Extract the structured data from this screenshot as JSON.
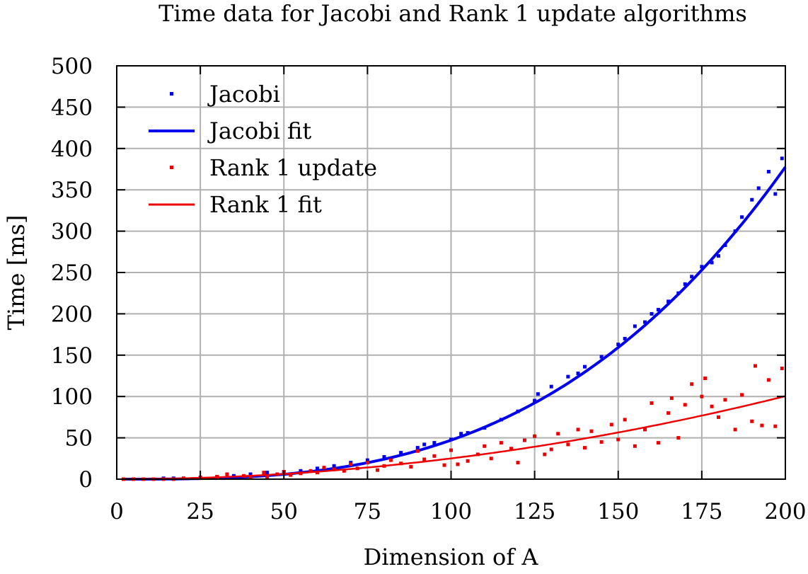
{
  "chart_data": {
    "type": "scatter",
    "title": "Time data for Jacobi and Rank 1 update algorithms",
    "xlabel": "Dimension of A",
    "ylabel": "Time [ms]",
    "xlim": [
      0,
      200
    ],
    "ylim": [
      0,
      500
    ],
    "xticks": [
      0,
      25,
      50,
      75,
      100,
      125,
      150,
      175,
      200
    ],
    "yticks": [
      0,
      50,
      100,
      150,
      200,
      250,
      300,
      350,
      400,
      450,
      500
    ],
    "grid": true,
    "legend_position": "top-left",
    "series": [
      {
        "name": "Jacobi",
        "kind": "points",
        "color": "#0000ee",
        "x": [
          2,
          5,
          8,
          11,
          14,
          17,
          20,
          25,
          30,
          35,
          40,
          45,
          50,
          55,
          60,
          65,
          70,
          75,
          80,
          85,
          90,
          92,
          95,
          100,
          103,
          105,
          110,
          115,
          120,
          125,
          126,
          130,
          135,
          138,
          140,
          145,
          150,
          152,
          155,
          158,
          160,
          162,
          165,
          168,
          170,
          172,
          175,
          178,
          180,
          182,
          185,
          187,
          190,
          192,
          195,
          197,
          199
        ],
        "y": [
          0,
          0,
          0,
          0,
          1,
          1,
          1,
          2,
          3,
          4,
          6,
          8,
          9,
          10,
          13,
          16,
          20,
          23,
          27,
          32,
          38,
          42,
          44,
          48,
          55,
          56,
          62,
          72,
          82,
          95,
          103,
          112,
          124,
          128,
          136,
          148,
          163,
          170,
          185,
          190,
          200,
          205,
          215,
          225,
          236,
          245,
          257,
          262,
          270,
          283,
          300,
          317,
          338,
          352,
          372,
          345,
          388
        ]
      },
      {
        "name": "Jacobi fit",
        "kind": "line",
        "color": "#0000ee",
        "model": "power",
        "coef": 4.72e-05,
        "exp": 3.0
      },
      {
        "name": "Rank 1 update",
        "kind": "points",
        "color": "#ee0000",
        "x": [
          2,
          5,
          8,
          11,
          14,
          17,
          20,
          25,
          30,
          33,
          38,
          40,
          44,
          45,
          48,
          50,
          52,
          55,
          58,
          60,
          62,
          65,
          68,
          70,
          72,
          75,
          78,
          80,
          82,
          85,
          88,
          90,
          92,
          95,
          98,
          100,
          102,
          105,
          108,
          110,
          112,
          115,
          118,
          120,
          122,
          125,
          128,
          130,
          132,
          135,
          138,
          140,
          142,
          145,
          148,
          150,
          152,
          155,
          158,
          160,
          162,
          165,
          166,
          168,
          170,
          172,
          175,
          176,
          178,
          180,
          182,
          185,
          187,
          190,
          191,
          193,
          195,
          197,
          199
        ],
        "y": [
          0,
          0,
          0,
          0,
          0,
          0,
          1,
          2,
          3,
          6,
          4,
          2,
          8,
          3,
          6,
          9,
          5,
          7,
          10,
          8,
          14,
          12,
          10,
          18,
          13,
          20,
          11,
          16,
          23,
          19,
          15,
          34,
          24,
          28,
          17,
          35,
          18,
          22,
          30,
          40,
          25,
          44,
          37,
          20,
          47,
          52,
          30,
          36,
          55,
          42,
          60,
          38,
          58,
          45,
          66,
          48,
          72,
          40,
          60,
          92,
          44,
          80,
          98,
          50,
          90,
          115,
          100,
          122,
          88,
          75,
          96,
          60,
          102,
          70,
          137,
          65,
          120,
          64,
          134
        ]
      },
      {
        "name": "Rank 1 fit",
        "kind": "line",
        "color": "#ee0000",
        "model": "power",
        "coef": 0.00251,
        "exp": 2.0
      }
    ]
  }
}
